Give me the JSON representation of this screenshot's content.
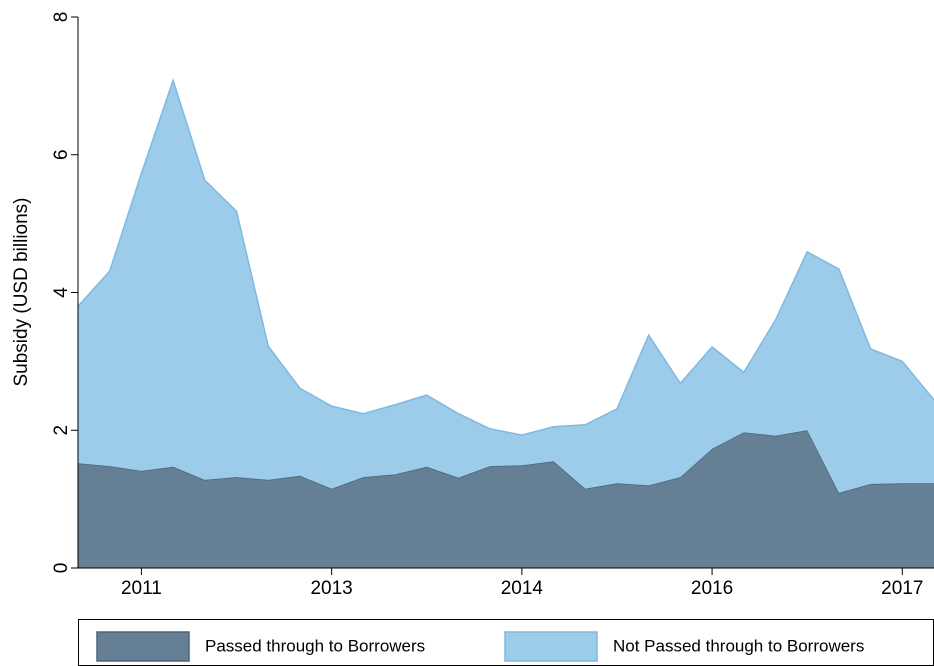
{
  "chart_data": {
    "type": "stacked-area",
    "y_label": "Subsidy (USD billions)",
    "categories": [
      null,
      null,
      "2011",
      null,
      null,
      null,
      null,
      null,
      "2013",
      null,
      null,
      null,
      null,
      null,
      "2014",
      null,
      null,
      null,
      null,
      null,
      "2016",
      null,
      null,
      null,
      null,
      null,
      "2017",
      null
    ],
    "series": [
      {
        "name": "Passed through to Borrowers",
        "color": "#657f94",
        "edge": "#4c6579",
        "values": [
          1.52,
          1.48,
          1.41,
          1.47,
          1.28,
          1.32,
          1.28,
          1.34,
          1.15,
          1.32,
          1.36,
          1.47,
          1.31,
          1.48,
          1.49,
          1.55,
          1.15,
          1.23,
          1.2,
          1.32,
          1.73,
          1.97,
          1.92,
          2.0,
          1.09,
          1.22,
          1.23,
          1.23
        ]
      },
      {
        "name": "Not Passed through to Borrowers",
        "color": "#9dcbea",
        "edge": "#7fb9e0",
        "values": [
          2.28,
          2.83,
          4.32,
          5.61,
          4.35,
          3.86,
          1.94,
          1.27,
          1.2,
          0.92,
          1.01,
          1.04,
          0.93,
          0.54,
          0.44,
          0.5,
          0.93,
          1.08,
          2.18,
          1.36,
          1.48,
          0.87,
          1.68,
          2.59,
          3.25,
          1.96,
          1.77,
          1.21
        ]
      }
    ],
    "ylim": [
      0,
      8
    ],
    "yticks": [
      0,
      2,
      4,
      6,
      8
    ],
    "legend": "bottom"
  }
}
